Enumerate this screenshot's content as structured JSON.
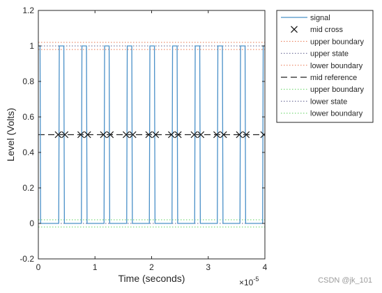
{
  "chart_data": {
    "type": "line",
    "xlabel": "Time (seconds)",
    "ylabel": "Level (Volts)",
    "x_exponent_label": "×10",
    "x_exponent": "-5",
    "xlim": [
      0,
      4
    ],
    "ylim": [
      -0.2,
      1.2
    ],
    "x_scale_note": "x values in units of 1e-5 seconds",
    "xticks": [
      0,
      1,
      2,
      3,
      4
    ],
    "yticks": [
      -0.2,
      0,
      0.2,
      0.4,
      0.6,
      0.8,
      1,
      1.2
    ],
    "ytick_labels": [
      "-0.2",
      "0",
      "0.2",
      "0.4",
      "0.6",
      "0.8",
      "1",
      "1.2"
    ],
    "legend_position": "outside-top-right",
    "signal": {
      "name": "signal",
      "color": "#4a90c8",
      "high": 1.0,
      "low": 0.0,
      "x": [
        0,
        0.03,
        0.04,
        0.36,
        0.37,
        0.45,
        0.46,
        0.76,
        0.77,
        0.85,
        0.86,
        1.16,
        1.17,
        1.25,
        1.26,
        1.56,
        1.57,
        1.65,
        1.66,
        1.96,
        1.97,
        2.05,
        2.06,
        2.36,
        2.37,
        2.45,
        2.46,
        2.76,
        2.77,
        2.85,
        2.86,
        3.16,
        3.17,
        3.25,
        3.26,
        3.56,
        3.57,
        3.65,
        3.66,
        3.96,
        3.97,
        4.0
      ],
      "y": [
        1,
        1,
        0,
        0,
        1,
        1,
        0,
        0,
        1,
        1,
        0,
        0,
        1,
        1,
        0,
        0,
        1,
        1,
        0,
        0,
        1,
        1,
        0,
        0,
        1,
        1,
        0,
        0,
        1,
        1,
        0,
        0,
        1,
        1,
        0,
        0,
        1,
        1,
        0,
        0,
        1,
        1
      ]
    },
    "mid_crosses": {
      "name": "mid cross",
      "x": [
        0.35,
        0.47,
        0.75,
        0.87,
        1.15,
        1.27,
        1.55,
        1.67,
        1.95,
        2.07,
        2.35,
        2.47,
        2.75,
        2.87,
        3.15,
        3.27,
        3.55,
        3.67,
        3.98
      ],
      "y": 0.5
    },
    "reference_lines": [
      {
        "name": "upper boundary",
        "y": 1.02,
        "color": "#e8734a",
        "style": "dotted"
      },
      {
        "name": "upper state",
        "y": 1.0,
        "color": "#5a5a8a",
        "style": "dotted"
      },
      {
        "name": "lower boundary",
        "y": 0.98,
        "color": "#e8734a",
        "style": "dotted"
      },
      {
        "name": "mid reference",
        "y": 0.5,
        "color": "#222222",
        "style": "dashed"
      },
      {
        "name": "upper boundary",
        "y": 0.02,
        "color": "#5fd35f",
        "style": "dotted"
      },
      {
        "name": "lower state",
        "y": 0.0,
        "color": "#5a5a8a",
        "style": "dotted"
      },
      {
        "name": "lower boundary",
        "y": -0.02,
        "color": "#5fd35f",
        "style": "dotted"
      }
    ],
    "legend": [
      "signal",
      "mid cross",
      "upper boundary",
      "upper state",
      "lower boundary",
      "mid reference",
      "upper boundary",
      "lower state",
      "lower boundary"
    ]
  },
  "watermark": "CSDN @jk_101"
}
